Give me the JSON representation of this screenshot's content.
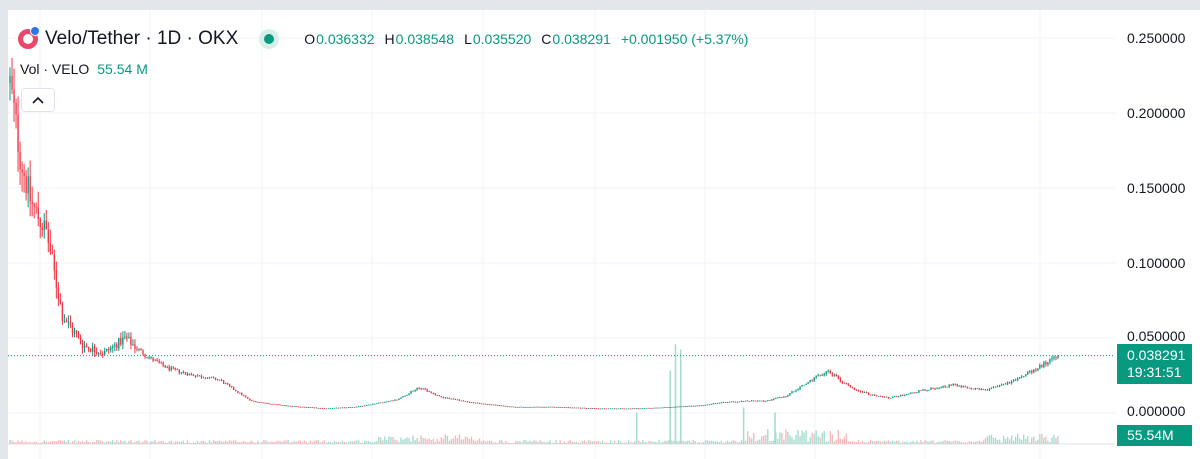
{
  "header": {
    "symbol": "Velo/Tether · 1D · OKX",
    "open_key": "O",
    "open": "0.036332",
    "high_key": "H",
    "high": "0.038548",
    "low_key": "L",
    "low": "0.035520",
    "close_key": "C",
    "close": "0.038291",
    "change": "+0.001950 (+5.37%)"
  },
  "volume_legend": {
    "name": "Vol · VELO",
    "value": "55.54 M"
  },
  "collapse_icon": "chevron-up-icon",
  "price_axis": {
    "ticks": [
      "0.250000",
      "0.200000",
      "0.150000",
      "0.100000",
      "0.050000",
      "0.000000"
    ]
  },
  "last_price": {
    "price": "0.038291",
    "countdown": "19:31:51"
  },
  "volume_label": "55.54M",
  "colors": {
    "up": "#089981",
    "down": "#f23645",
    "background": "#ffffff",
    "grid": "#f0f3fa"
  },
  "chart_data": {
    "type": "candlestick",
    "title": "Velo/Tether · 1D · OKX",
    "ylim": [
      0,
      0.26
    ],
    "y_ticks": [
      0,
      0.05,
      0.1,
      0.15,
      0.2,
      0.25
    ],
    "grid": true,
    "last_close": 0.038291,
    "price_trend": {
      "x": [
        0,
        0.01,
        0.02,
        0.035,
        0.05,
        0.07,
        0.09,
        0.11,
        0.13,
        0.15,
        0.17,
        0.2,
        0.23,
        0.26,
        0.3,
        0.33,
        0.37,
        0.39,
        0.41,
        0.44,
        0.48,
        0.52,
        0.56,
        0.6,
        0.63,
        0.66,
        0.68,
        0.7,
        0.72,
        0.74,
        0.76,
        0.78,
        0.8,
        0.82,
        0.84,
        0.87,
        0.9,
        0.93,
        0.96,
        0.98,
        1.0
      ],
      "close": [
        0.22,
        0.17,
        0.14,
        0.12,
        0.065,
        0.045,
        0.04,
        0.05,
        0.038,
        0.03,
        0.026,
        0.022,
        0.008,
        0.005,
        0.003,
        0.004,
        0.009,
        0.017,
        0.011,
        0.007,
        0.004,
        0.004,
        0.003,
        0.003,
        0.004,
        0.005,
        0.007,
        0.008,
        0.008,
        0.011,
        0.02,
        0.028,
        0.018,
        0.012,
        0.01,
        0.015,
        0.019,
        0.015,
        0.022,
        0.03,
        0.0383
      ]
    },
    "volume_spikes": [
      {
        "x": 0.63,
        "volume_rel": 0.7
      },
      {
        "x": 0.635,
        "volume_rel": 0.95
      },
      {
        "x": 0.64,
        "volume_rel": 0.9
      },
      {
        "x": 0.598,
        "volume_rel": 0.3
      },
      {
        "x": 0.7,
        "volume_rel": 0.35
      },
      {
        "x": 0.73,
        "volume_rel": 0.3
      }
    ]
  }
}
